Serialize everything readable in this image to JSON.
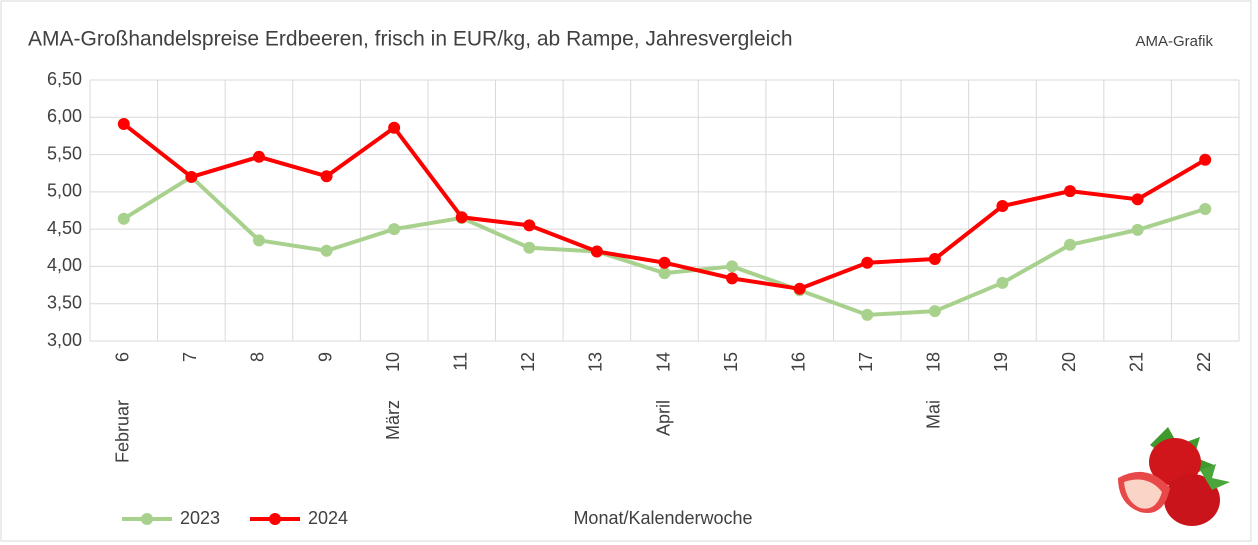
{
  "chart_data": {
    "type": "line",
    "title": "AMA-Großhandelspreise Erdbeeren, frisch  in EUR/kg, ab Rampe, Jahresvergleich",
    "source": "AMA-Grafik",
    "x_label": "Monat/Kalenderwoche",
    "categories": [
      "6",
      "7",
      "8",
      "9",
      "10",
      "11",
      "12",
      "13",
      "14",
      "15",
      "16",
      "17",
      "18",
      "19",
      "20",
      "21",
      "22"
    ],
    "months": [
      "Februar",
      null,
      null,
      null,
      "März",
      null,
      null,
      null,
      "April",
      null,
      null,
      null,
      "Mai",
      null,
      null,
      null,
      null
    ],
    "series": [
      {
        "name": "2023",
        "color": "#a9d18e",
        "values": [
          4.64,
          5.2,
          4.35,
          4.21,
          4.5,
          4.65,
          4.25,
          4.2,
          3.91,
          4.0,
          3.68,
          3.35,
          3.4,
          3.78,
          4.29,
          4.49,
          4.77
        ]
      },
      {
        "name": "2024",
        "color": "#ff0000",
        "values": [
          5.91,
          5.2,
          5.47,
          5.21,
          5.86,
          4.66,
          4.55,
          4.2,
          4.05,
          3.84,
          3.7,
          4.05,
          4.1,
          4.81,
          5.01,
          4.9,
          5.43
        ]
      }
    ],
    "ylim": [
      3.0,
      6.5
    ],
    "yticks": [
      {
        "value": 3.0,
        "label": "3,00"
      },
      {
        "value": 3.5,
        "label": "3,50"
      },
      {
        "value": 4.0,
        "label": "4,00"
      },
      {
        "value": 4.5,
        "label": "4,50"
      },
      {
        "value": 5.0,
        "label": "5,00"
      },
      {
        "value": 5.5,
        "label": "5,50"
      },
      {
        "value": 6.0,
        "label": "6,00"
      },
      {
        "value": 6.5,
        "label": "6,50"
      }
    ],
    "grid": true,
    "legend": "bottom-left"
  }
}
